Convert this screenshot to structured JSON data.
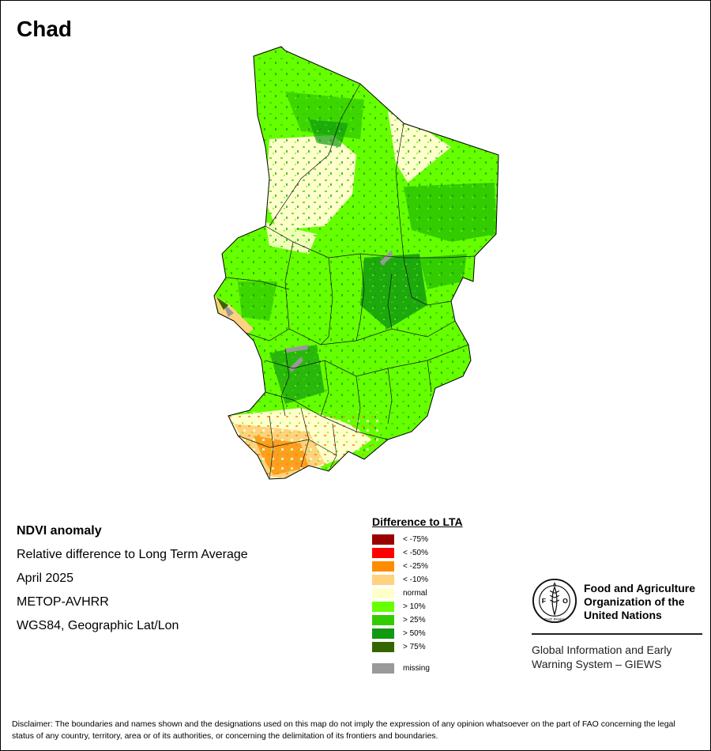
{
  "map": {
    "title": "Chad",
    "subtitle": "NDVI anomaly",
    "description": "Relative difference to Long Term Average",
    "period": "April 2025",
    "sensor": "METOP-AVHRR",
    "projection": "WGS84, Geographic Lat/Lon"
  },
  "legend": {
    "title": "Difference to LTA",
    "items": [
      {
        "label": "< -75%",
        "color": "#990000"
      },
      {
        "label": "< -50%",
        "color": "#ff0000"
      },
      {
        "label": "< -25%",
        "color": "#ff8c00"
      },
      {
        "label": "< -10%",
        "color": "#ffd27f"
      },
      {
        "label": "normal",
        "color": "#ffffcc"
      },
      {
        "label": "> 10%",
        "color": "#66ff00"
      },
      {
        "label": "> 25%",
        "color": "#33cc00"
      },
      {
        "label": "> 50%",
        "color": "#119911"
      },
      {
        "label": "> 75%",
        "color": "#336600"
      }
    ],
    "missing": {
      "label": "missing",
      "color": "#999999"
    }
  },
  "org": {
    "name_line1": "Food and Agriculture",
    "name_line2": "Organization of the",
    "name_line3": "United Nations",
    "system_line1": "Global Information and Early",
    "system_line2": "Warning System – GIEWS",
    "logo_text": "FAO",
    "logo_motto": "FIAT PANIS",
    "logo_icon": "fao-emblem-icon"
  },
  "disclaimer": "Disclaimer: The boundaries and names shown and the designations used on this map do not imply the expression of any opinion whatsoever on the part of FAO concerning the legal status of any country, territory, area or of its authorities, or concerning the delimitation of its frontiers and boundaries."
}
